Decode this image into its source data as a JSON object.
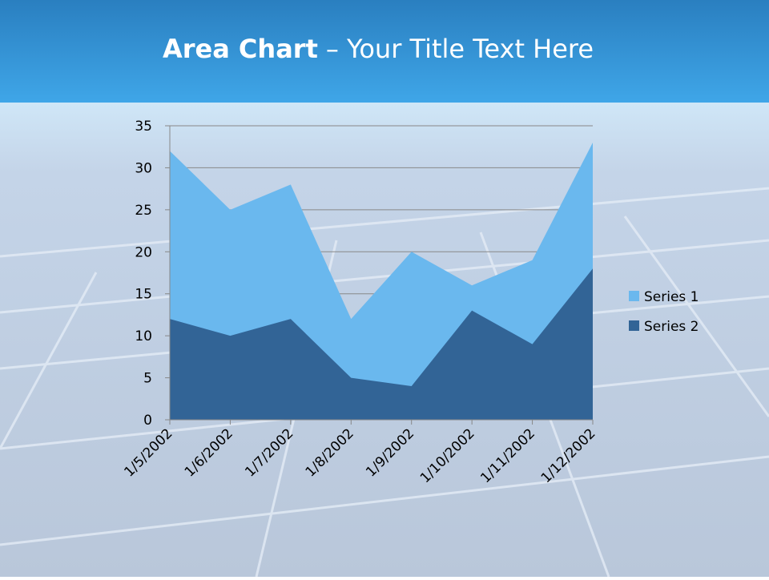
{
  "chart_data": {
    "type": "area",
    "title": {
      "bold": "Area Chart",
      "rest": "– Your Title Text Here"
    },
    "categories": [
      "1/5/2002",
      "1/6/2002",
      "1/7/2002",
      "1/8/2002",
      "1/9/2002",
      "1/10/2002",
      "1/11/2002",
      "1/12/2002"
    ],
    "series": [
      {
        "name": "Series 1",
        "color": "#6ab8ee",
        "values": [
          32,
          25,
          28,
          12,
          20,
          16,
          19,
          33
        ]
      },
      {
        "name": "Series 2",
        "color": "#326496",
        "values": [
          12,
          10,
          12,
          5,
          4,
          13,
          9,
          18
        ]
      }
    ],
    "ylim": [
      0,
      35
    ],
    "yticks": [
      0,
      5,
      10,
      15,
      20,
      25,
      30,
      35
    ],
    "grid": true,
    "legend": "right"
  }
}
